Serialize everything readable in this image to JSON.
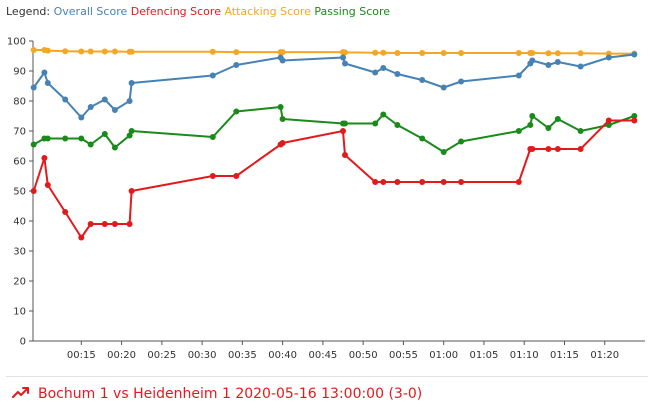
{
  "legend": {
    "title": "Legend:",
    "items": [
      {
        "label": "Overall Score",
        "color": "#4682b4"
      },
      {
        "label": "Defencing Score",
        "color": "#e31a1c"
      },
      {
        "label": "Attacking Score",
        "color": "#f5a623"
      },
      {
        "label": "Passing Score",
        "color": "#1a8a1a"
      }
    ]
  },
  "footer": {
    "match": "Bochum 1 vs Heidenheim 1 2020-05-16 13:00:00 (3-0)",
    "color": "#e31a1c",
    "icon": "trending-up-icon"
  },
  "chart_data": {
    "type": "line",
    "xlabel": "",
    "ylabel": "",
    "ylim": [
      0,
      100
    ],
    "yticks": [
      0,
      10,
      20,
      30,
      40,
      50,
      60,
      70,
      80,
      90,
      100
    ],
    "xlim": [
      "00:09",
      "01:25"
    ],
    "xticks": [
      "00:15",
      "00:20",
      "00:25",
      "00:30",
      "00:35",
      "00:40",
      "00:45",
      "00:50",
      "00:55",
      "01:00",
      "01:05",
      "01:10",
      "01:15",
      "01:20"
    ],
    "grid": false,
    "legend_position": "top-left",
    "x": [
      "00:09:05",
      "00:10:25",
      "00:10:50",
      "00:13:00",
      "00:15:00",
      "00:16:10",
      "00:17:55",
      "00:19:10",
      "00:21:00",
      "00:21:15",
      "00:31:20",
      "00:34:15",
      "00:39:45",
      "00:40:00",
      "00:47:30",
      "00:47:45",
      "00:51:30",
      "00:52:30",
      "00:54:15",
      "00:57:20",
      "01:00:00",
      "01:02:10",
      "01:09:20",
      "01:10:45",
      "01:11:00",
      "01:13:00",
      "01:14:10",
      "01:17:00",
      "01:20:30",
      "01:23:40"
    ],
    "series": [
      {
        "name": "Overall Score",
        "color": "#4682b4",
        "values": [
          84.5,
          89.5,
          86,
          80.5,
          74.5,
          78,
          80.5,
          77,
          80,
          86,
          88.5,
          92,
          94.5,
          93.5,
          94.5,
          92.5,
          89.5,
          91,
          89,
          87,
          84.5,
          86.5,
          88.5,
          92.5,
          93.5,
          92,
          93,
          91.5,
          94.5,
          95.5
        ]
      },
      {
        "name": "Defencing Score",
        "color": "#e31a1c",
        "values": [
          50,
          61,
          52,
          43,
          34.5,
          39,
          39,
          39,
          39,
          50,
          55,
          55,
          65.5,
          66,
          70,
          62,
          53,
          53,
          53,
          53,
          53,
          53,
          53,
          64,
          64,
          64,
          64,
          64,
          73.5,
          73.5
        ]
      },
      {
        "name": "Attacking Score",
        "color": "#f5a623",
        "values": [
          97,
          97,
          96.8,
          96.6,
          96.5,
          96.5,
          96.5,
          96.5,
          96.4,
          96.4,
          96.4,
          96.3,
          96.3,
          96.3,
          96.3,
          96.2,
          96.1,
          96.1,
          96,
          96,
          96,
          96,
          96,
          96,
          96,
          95.9,
          95.9,
          95.9,
          95.8,
          95.8
        ]
      },
      {
        "name": "Passing Score",
        "color": "#1a8a1a",
        "values": [
          65.5,
          67.5,
          67.5,
          67.5,
          67.5,
          65.5,
          69,
          64.5,
          68.5,
          70,
          68,
          76.5,
          78,
          74,
          72.5,
          72.5,
          72.5,
          75.5,
          72,
          67.5,
          63,
          66.5,
          70,
          72,
          75,
          71,
          74,
          70,
          72,
          75
        ]
      }
    ]
  }
}
